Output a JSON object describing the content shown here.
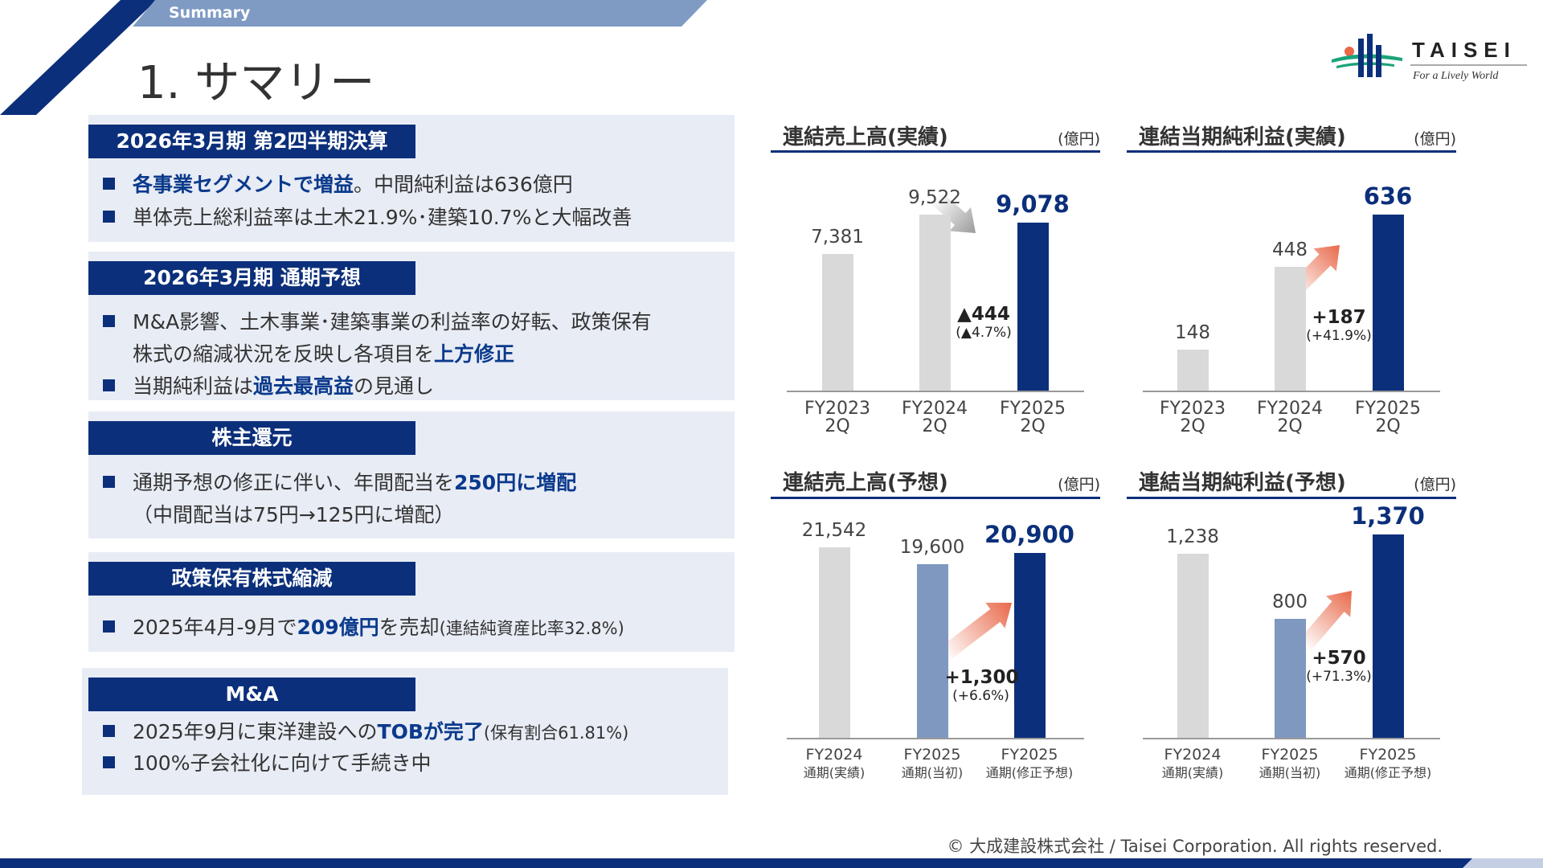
{
  "header": {
    "banner": "Summary",
    "title": "1. サマリー",
    "copyright": "© 大成建設株式会社 / Taisei Corporation. All rights reserved."
  },
  "logo": {
    "name": "TAISEI",
    "tagline": "For a Lively World"
  },
  "colors": {
    "navy": "#0b2f7a",
    "gray_bar": "#d9d9d9",
    "initial_bar": "#7f98bf",
    "accent_arrow": "#e8694a",
    "box_bg": "#e8ecf5"
  },
  "sections": [
    {
      "heading": "2026年3月期 第2四半期決算",
      "lines": [
        {
          "parts": [
            {
              "t": "各事業セグメントで増益",
              "em": true
            },
            {
              "t": "。中間純利益は636億円"
            }
          ]
        },
        {
          "parts": [
            {
              "t": "単体売上総利益率は土木21.9%･建築10.7%と大幅改善"
            }
          ]
        }
      ]
    },
    {
      "heading": "2026年3月期 通期予想",
      "lines": [
        {
          "parts": [
            {
              "t": "M&A影響、土木事業･建築事業の利益率の好転、政策保有"
            }
          ]
        },
        {
          "parts": [
            {
              "t": "株式の縮減状況を反映し各項目を"
            },
            {
              "t": "上方修正",
              "em": true
            }
          ],
          "cont": true
        },
        {
          "parts": [
            {
              "t": "当期純利益は"
            },
            {
              "t": "過去最高益",
              "em": true
            },
            {
              "t": "の見通し"
            }
          ]
        }
      ]
    },
    {
      "heading": "株主還元",
      "lines": [
        {
          "parts": [
            {
              "t": "通期予想の修正に伴い、年間配当を"
            },
            {
              "t": "250円に増配",
              "em": true
            }
          ]
        },
        {
          "parts": [
            {
              "t": "（中間配当は75円→125円に増配）"
            }
          ],
          "cont": true
        }
      ]
    },
    {
      "heading": "政策保有株式縮減",
      "lines": [
        {
          "parts": [
            {
              "t": "2025年4月-9月で"
            },
            {
              "t": "209億円",
              "em": true
            },
            {
              "t": "を売却"
            },
            {
              "t": "(連結純資産比率32.8%)",
              "sm": true
            }
          ]
        }
      ]
    },
    {
      "heading": "M&A",
      "lines": [
        {
          "parts": [
            {
              "t": "2025年9月に東洋建設への"
            },
            {
              "t": "TOBが完了",
              "em": true
            },
            {
              "t": "(保有割合61.81%)",
              "sm": true
            }
          ]
        },
        {
          "parts": [
            {
              "t": "100%子会社化に向けて手続き中"
            }
          ]
        }
      ]
    }
  ],
  "chart_data": [
    {
      "type": "bar",
      "title": "連結売上高(実績)",
      "unit": "(億円)",
      "categories": [
        [
          "FY2023",
          "2Q"
        ],
        [
          "FY2024",
          "2Q"
        ],
        [
          "FY2025",
          "2Q"
        ]
      ],
      "values": [
        7381,
        9522,
        9078
      ],
      "labels": [
        "7,381",
        "9,522",
        "9,078"
      ],
      "bar_colors": [
        "#d9d9d9",
        "#d9d9d9",
        "#0b2f7a"
      ],
      "delta": "▲444",
      "delta_pct": "(▲4.7%)",
      "arrow": "down"
    },
    {
      "type": "bar",
      "title": "連結当期純利益(実績)",
      "unit": "(億円)",
      "categories": [
        [
          "FY2023",
          "2Q"
        ],
        [
          "FY2024",
          "2Q"
        ],
        [
          "FY2025",
          "2Q"
        ]
      ],
      "values": [
        148,
        448,
        636
      ],
      "labels": [
        "148",
        "448",
        "636"
      ],
      "bar_colors": [
        "#d9d9d9",
        "#d9d9d9",
        "#0b2f7a"
      ],
      "delta": "+187",
      "delta_pct": "(+41.9%)",
      "arrow": "up"
    },
    {
      "type": "bar",
      "title": "連結売上高(予想)",
      "unit": "(億円)",
      "categories": [
        [
          "FY2024",
          "通期(実績)"
        ],
        [
          "FY2025",
          "通期(当初)"
        ],
        [
          "FY2025",
          "通期(修正予想)"
        ]
      ],
      "values": [
        21542,
        19600,
        20900
      ],
      "labels": [
        "21,542",
        "19,600",
        "20,900"
      ],
      "bar_colors": [
        "#d9d9d9",
        "#7f98bf",
        "#0b2f7a"
      ],
      "delta": "+1,300",
      "delta_pct": "(+6.6%)",
      "arrow": "up"
    },
    {
      "type": "bar",
      "title": "連結当期純利益(予想)",
      "unit": "(億円)",
      "categories": [
        [
          "FY2024",
          "通期(実績)"
        ],
        [
          "FY2025",
          "通期(当初)"
        ],
        [
          "FY2025",
          "通期(修正予想)"
        ]
      ],
      "values": [
        1238,
        800,
        1370
      ],
      "labels": [
        "1,238",
        "800",
        "1,370"
      ],
      "bar_colors": [
        "#d9d9d9",
        "#7f98bf",
        "#0b2f7a"
      ],
      "delta": "+570",
      "delta_pct": "(+71.3%)",
      "arrow": "up"
    }
  ]
}
